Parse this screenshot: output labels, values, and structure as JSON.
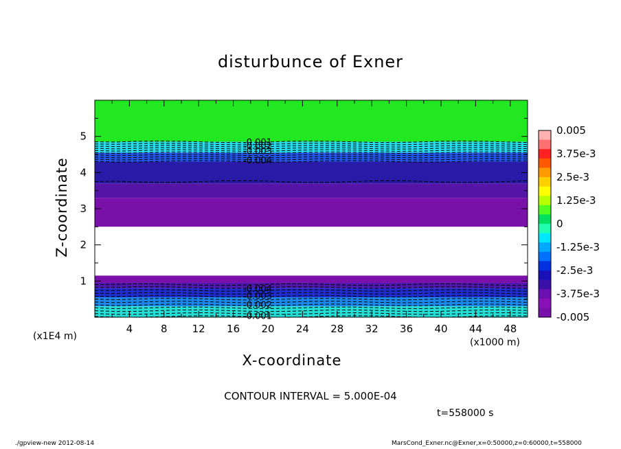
{
  "title": "disturbunce of Exner",
  "chart_data": {
    "type": "heatmap",
    "title": "disturbunce of Exner",
    "xlabel": "X-coordinate",
    "ylabel": "Z-coordinate",
    "x_scale_label": "(x1E4 m)",
    "x_unit_label": "(x1000 m)",
    "xlim": [
      0,
      50
    ],
    "ylim": [
      0,
      6
    ],
    "x_ticks": [
      "4",
      "8",
      "12",
      "16",
      "20",
      "24",
      "28",
      "32",
      "36",
      "40",
      "44",
      "48"
    ],
    "y_ticks": [
      "1",
      "2",
      "3",
      "4",
      "5"
    ],
    "colorbar": {
      "range": [
        -0.005,
        0.005
      ],
      "tick_labels": [
        "0.005",
        "3.75e-3",
        "2.5e-3",
        "1.25e-3",
        "0",
        "-1.25e-3",
        "-2.5e-3",
        "-3.75e-3",
        "-0.005"
      ]
    },
    "bands": [
      {
        "z_top": 6.0,
        "z_bottom": 4.85,
        "value": 0.0,
        "color": "#22e822"
      },
      {
        "z_top": 4.85,
        "z_bottom": 4.55,
        "value": -0.0015,
        "color": "#22ddee"
      },
      {
        "z_top": 4.55,
        "z_bottom": 4.3,
        "value": -0.003,
        "color": "#2255ee"
      },
      {
        "z_top": 4.3,
        "z_bottom": 3.7,
        "value": -0.004,
        "color": "#2a1aa8"
      },
      {
        "z_top": 3.7,
        "z_bottom": 3.3,
        "value": -0.0045,
        "color": "#5515a6"
      },
      {
        "z_top": 3.3,
        "z_bottom": 2.5,
        "value": -0.005,
        "color": "#7a10aa"
      },
      {
        "z_top": 2.5,
        "z_bottom": 1.15,
        "value": null,
        "color": "#ffffff"
      },
      {
        "z_top": 1.15,
        "z_bottom": 0.95,
        "value": -0.005,
        "color": "#7a10aa"
      },
      {
        "z_top": 0.95,
        "z_bottom": 0.8,
        "value": -0.0045,
        "color": "#4e18b0"
      },
      {
        "z_top": 0.8,
        "z_bottom": 0.55,
        "value": -0.004,
        "color": "#1f2cd0"
      },
      {
        "z_top": 0.55,
        "z_bottom": 0.3,
        "value": -0.003,
        "color": "#1a88ee"
      },
      {
        "z_top": 0.3,
        "z_bottom": 0.0,
        "value": -0.0015,
        "color": "#22e0d8"
      }
    ],
    "contour_labels": [
      {
        "text": "-0.001",
        "x": 20,
        "z": 4.85
      },
      {
        "text": "-0.002",
        "x": 20,
        "z": 4.75
      },
      {
        "text": "-0.003",
        "x": 20,
        "z": 4.6
      },
      {
        "text": "-0.004",
        "x": 20,
        "z": 4.35
      },
      {
        "text": "-0.004",
        "x": 20,
        "z": 0.8
      },
      {
        "text": "-0.003",
        "x": 20,
        "z": 0.6
      },
      {
        "text": "-0.002",
        "x": 20,
        "z": 0.35
      },
      {
        "text": "-0.001",
        "x": 20,
        "z": 0.05
      }
    ]
  },
  "contour_interval": "CONTOUR INTERVAL = 5.000E-04",
  "time": "t=558000 s",
  "footer_left": "./gpview-new  2012-08-14",
  "footer_right": "MarsCond_Exner.nc@Exner,x=0:50000,z=0:60000,t=558000"
}
